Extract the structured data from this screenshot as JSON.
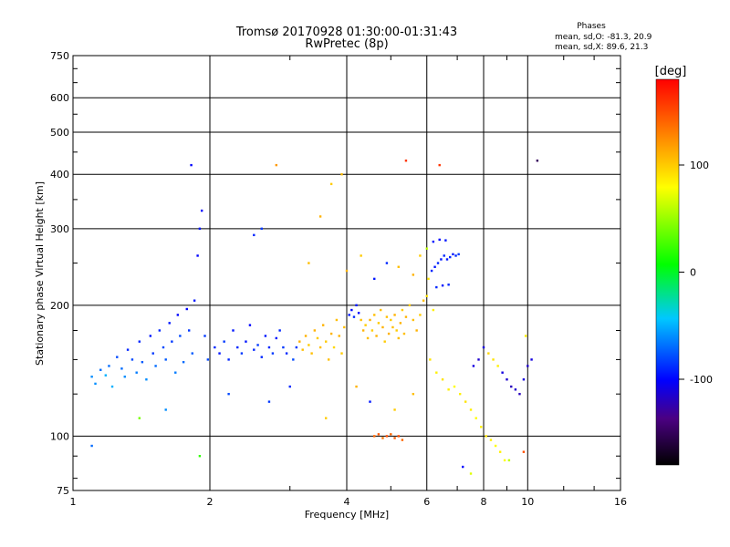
{
  "header": {
    "title_line1": "Tromsø 20170928 01:30:00-01:31:43",
    "title_line2": "RwPretec (8p)",
    "stats_title": "Phases",
    "stats_line1": "mean, sd,O: -81.3, 20.9",
    "stats_line2": "mean, sd,X:  89.6, 21.3"
  },
  "colorbar": {
    "label": "[deg]",
    "ticks": [
      {
        "label": "100",
        "value": 100
      },
      {
        "label": "0",
        "value": 0
      },
      {
        "label": "-100",
        "value": -100
      }
    ],
    "range": [
      -180,
      180
    ]
  },
  "chart_data": {
    "type": "scatter",
    "xlabel": "Frequency [MHz]",
    "ylabel": "Stationary phase Virtual Height [km]",
    "xscale": "log",
    "yscale": "log",
    "xlim": [
      1,
      16
    ],
    "ylim": [
      75,
      750
    ],
    "xticks": [
      {
        "label": "1",
        "value": 1
      },
      {
        "label": "2",
        "value": 2
      },
      {
        "label": "4",
        "value": 4
      },
      {
        "label": "6",
        "value": 6
      },
      {
        "label": "8",
        "value": 8
      },
      {
        "label": "10",
        "value": 10
      },
      {
        "label": "16",
        "value": 16
      }
    ],
    "yticks": [
      {
        "label": "75",
        "value": 75
      },
      {
        "label": "100",
        "value": 100
      },
      {
        "label": "200",
        "value": 200
      },
      {
        "label": "300",
        "value": 300
      },
      {
        "label": "400",
        "value": 400
      },
      {
        "label": "500",
        "value": 500
      },
      {
        "label": "600",
        "value": 600
      },
      {
        "label": "750",
        "value": 750
      }
    ],
    "grid": true,
    "color_scale": "rainbow phase [deg], -180 black to 180 red",
    "points": [
      {
        "x": 1.1,
        "y": 137,
        "phase": -60
      },
      {
        "x": 1.12,
        "y": 132,
        "phase": -60
      },
      {
        "x": 1.15,
        "y": 142,
        "phase": -70
      },
      {
        "x": 1.18,
        "y": 138,
        "phase": -50
      },
      {
        "x": 1.2,
        "y": 145,
        "phase": -70
      },
      {
        "x": 1.22,
        "y": 130,
        "phase": -50
      },
      {
        "x": 1.25,
        "y": 152,
        "phase": -80
      },
      {
        "x": 1.28,
        "y": 143,
        "phase": -70
      },
      {
        "x": 1.3,
        "y": 137,
        "phase": -60
      },
      {
        "x": 1.32,
        "y": 158,
        "phase": -90
      },
      {
        "x": 1.35,
        "y": 150,
        "phase": -80
      },
      {
        "x": 1.38,
        "y": 140,
        "phase": -65
      },
      {
        "x": 1.4,
        "y": 165,
        "phase": -90
      },
      {
        "x": 1.42,
        "y": 148,
        "phase": -75
      },
      {
        "x": 1.45,
        "y": 135,
        "phase": -60
      },
      {
        "x": 1.48,
        "y": 170,
        "phase": -95
      },
      {
        "x": 1.5,
        "y": 155,
        "phase": -85
      },
      {
        "x": 1.52,
        "y": 145,
        "phase": -70
      },
      {
        "x": 1.55,
        "y": 175,
        "phase": -90
      },
      {
        "x": 1.58,
        "y": 160,
        "phase": -80
      },
      {
        "x": 1.6,
        "y": 150,
        "phase": -75
      },
      {
        "x": 1.63,
        "y": 182,
        "phase": -95
      },
      {
        "x": 1.65,
        "y": 165,
        "phase": -85
      },
      {
        "x": 1.68,
        "y": 140,
        "phase": -65
      },
      {
        "x": 1.7,
        "y": 190,
        "phase": -100
      },
      {
        "x": 1.72,
        "y": 170,
        "phase": -80
      },
      {
        "x": 1.75,
        "y": 148,
        "phase": -70
      },
      {
        "x": 1.78,
        "y": 196,
        "phase": -100
      },
      {
        "x": 1.8,
        "y": 175,
        "phase": -85
      },
      {
        "x": 1.83,
        "y": 155,
        "phase": -75
      },
      {
        "x": 1.85,
        "y": 205,
        "phase": -95
      },
      {
        "x": 1.88,
        "y": 260,
        "phase": -100
      },
      {
        "x": 1.9,
        "y": 300,
        "phase": -95
      },
      {
        "x": 1.92,
        "y": 330,
        "phase": -100
      },
      {
        "x": 1.95,
        "y": 170,
        "phase": -85
      },
      {
        "x": 1.98,
        "y": 150,
        "phase": -80
      },
      {
        "x": 2.05,
        "y": 160,
        "phase": -90
      },
      {
        "x": 2.1,
        "y": 155,
        "phase": -95
      },
      {
        "x": 2.15,
        "y": 165,
        "phase": -85
      },
      {
        "x": 2.2,
        "y": 150,
        "phase": -90
      },
      {
        "x": 2.25,
        "y": 175,
        "phase": -95
      },
      {
        "x": 2.3,
        "y": 160,
        "phase": -90
      },
      {
        "x": 2.35,
        "y": 155,
        "phase": -85
      },
      {
        "x": 2.4,
        "y": 165,
        "phase": -95
      },
      {
        "x": 2.45,
        "y": 180,
        "phase": -100
      },
      {
        "x": 2.5,
        "y": 158,
        "phase": -90
      },
      {
        "x": 2.55,
        "y": 162,
        "phase": -85
      },
      {
        "x": 2.6,
        "y": 152,
        "phase": -90
      },
      {
        "x": 2.65,
        "y": 170,
        "phase": -95
      },
      {
        "x": 2.7,
        "y": 160,
        "phase": -90
      },
      {
        "x": 2.75,
        "y": 155,
        "phase": -85
      },
      {
        "x": 2.8,
        "y": 168,
        "phase": -95
      },
      {
        "x": 2.85,
        "y": 175,
        "phase": -90
      },
      {
        "x": 2.9,
        "y": 160,
        "phase": -85
      },
      {
        "x": 2.95,
        "y": 155,
        "phase": -90
      },
      {
        "x": 3.05,
        "y": 150,
        "phase": -80
      },
      {
        "x": 3.1,
        "y": 160,
        "phase": -85
      },
      {
        "x": 3.15,
        "y": 165,
        "phase": 110
      },
      {
        "x": 3.2,
        "y": 158,
        "phase": 105
      },
      {
        "x": 3.25,
        "y": 170,
        "phase": 110
      },
      {
        "x": 3.3,
        "y": 162,
        "phase": 100
      },
      {
        "x": 3.35,
        "y": 155,
        "phase": 105
      },
      {
        "x": 3.4,
        "y": 175,
        "phase": 110
      },
      {
        "x": 3.45,
        "y": 168,
        "phase": 100
      },
      {
        "x": 3.5,
        "y": 160,
        "phase": 105
      },
      {
        "x": 3.55,
        "y": 180,
        "phase": 110
      },
      {
        "x": 3.6,
        "y": 165,
        "phase": 100
      },
      {
        "x": 3.65,
        "y": 150,
        "phase": 105
      },
      {
        "x": 3.7,
        "y": 172,
        "phase": 110
      },
      {
        "x": 3.75,
        "y": 160,
        "phase": 95
      },
      {
        "x": 3.8,
        "y": 185,
        "phase": 105
      },
      {
        "x": 3.85,
        "y": 170,
        "phase": 110
      },
      {
        "x": 3.9,
        "y": 155,
        "phase": 100
      },
      {
        "x": 3.95,
        "y": 178,
        "phase": 105
      },
      {
        "x": 4.05,
        "y": 190,
        "phase": -95
      },
      {
        "x": 4.1,
        "y": 195,
        "phase": -100
      },
      {
        "x": 4.15,
        "y": 188,
        "phase": -90
      },
      {
        "x": 4.2,
        "y": 200,
        "phase": -95
      },
      {
        "x": 4.25,
        "y": 192,
        "phase": -100
      },
      {
        "x": 4.3,
        "y": 185,
        "phase": 105
      },
      {
        "x": 4.35,
        "y": 175,
        "phase": 110
      },
      {
        "x": 4.4,
        "y": 180,
        "phase": 100
      },
      {
        "x": 4.45,
        "y": 168,
        "phase": 105
      },
      {
        "x": 4.5,
        "y": 185,
        "phase": 110
      },
      {
        "x": 4.55,
        "y": 175,
        "phase": 100
      },
      {
        "x": 4.6,
        "y": 190,
        "phase": 105
      },
      {
        "x": 4.65,
        "y": 170,
        "phase": 110
      },
      {
        "x": 4.7,
        "y": 182,
        "phase": 100
      },
      {
        "x": 4.75,
        "y": 195,
        "phase": 105
      },
      {
        "x": 4.8,
        "y": 178,
        "phase": 110
      },
      {
        "x": 4.85,
        "y": 165,
        "phase": 100
      },
      {
        "x": 4.9,
        "y": 188,
        "phase": 105
      },
      {
        "x": 4.95,
        "y": 172,
        "phase": 110
      },
      {
        "x": 5.0,
        "y": 185,
        "phase": 100
      },
      {
        "x": 5.05,
        "y": 178,
        "phase": 105
      },
      {
        "x": 5.1,
        "y": 190,
        "phase": 110
      },
      {
        "x": 5.15,
        "y": 175,
        "phase": 100
      },
      {
        "x": 5.2,
        "y": 168,
        "phase": 105
      },
      {
        "x": 5.25,
        "y": 182,
        "phase": 110
      },
      {
        "x": 5.3,
        "y": 195,
        "phase": 100
      },
      {
        "x": 5.35,
        "y": 172,
        "phase": 105
      },
      {
        "x": 5.4,
        "y": 188,
        "phase": 110
      },
      {
        "x": 5.5,
        "y": 200,
        "phase": 100
      },
      {
        "x": 5.6,
        "y": 185,
        "phase": 105
      },
      {
        "x": 5.7,
        "y": 175,
        "phase": 110
      },
      {
        "x": 5.8,
        "y": 190,
        "phase": 100
      },
      {
        "x": 5.9,
        "y": 205,
        "phase": 105
      },
      {
        "x": 4.6,
        "y": 100,
        "phase": 140
      },
      {
        "x": 4.7,
        "y": 101,
        "phase": 145
      },
      {
        "x": 4.8,
        "y": 99,
        "phase": 135
      },
      {
        "x": 4.9,
        "y": 100,
        "phase": 150
      },
      {
        "x": 5.0,
        "y": 101,
        "phase": 140
      },
      {
        "x": 5.1,
        "y": 99,
        "phase": 145
      },
      {
        "x": 5.2,
        "y": 100,
        "phase": 150
      },
      {
        "x": 5.3,
        "y": 98,
        "phase": 140
      },
      {
        "x": 6.05,
        "y": 230,
        "phase": 90
      },
      {
        "x": 6.15,
        "y": 240,
        "phase": -90
      },
      {
        "x": 6.25,
        "y": 245,
        "phase": -95
      },
      {
        "x": 6.35,
        "y": 250,
        "phase": -90
      },
      {
        "x": 6.45,
        "y": 255,
        "phase": -95
      },
      {
        "x": 6.55,
        "y": 260,
        "phase": -90
      },
      {
        "x": 6.65,
        "y": 255,
        "phase": -95
      },
      {
        "x": 6.75,
        "y": 258,
        "phase": -90
      },
      {
        "x": 6.85,
        "y": 262,
        "phase": -95
      },
      {
        "x": 6.95,
        "y": 260,
        "phase": -90
      },
      {
        "x": 7.05,
        "y": 262,
        "phase": -85
      },
      {
        "x": 6.2,
        "y": 280,
        "phase": -95
      },
      {
        "x": 6.4,
        "y": 283,
        "phase": -100
      },
      {
        "x": 6.6,
        "y": 282,
        "phase": -95
      },
      {
        "x": 6.3,
        "y": 220,
        "phase": -90
      },
      {
        "x": 6.5,
        "y": 222,
        "phase": -95
      },
      {
        "x": 6.7,
        "y": 223,
        "phase": -90
      },
      {
        "x": 6.1,
        "y": 150,
        "phase": 90
      },
      {
        "x": 6.3,
        "y": 140,
        "phase": 85
      },
      {
        "x": 6.5,
        "y": 135,
        "phase": 90
      },
      {
        "x": 6.7,
        "y": 128,
        "phase": 85
      },
      {
        "x": 6.9,
        "y": 130,
        "phase": 80
      },
      {
        "x": 7.1,
        "y": 125,
        "phase": 85
      },
      {
        "x": 7.3,
        "y": 120,
        "phase": 90
      },
      {
        "x": 7.5,
        "y": 115,
        "phase": 85
      },
      {
        "x": 7.7,
        "y": 110,
        "phase": 80
      },
      {
        "x": 7.9,
        "y": 105,
        "phase": 85
      },
      {
        "x": 8.1,
        "y": 100,
        "phase": 90
      },
      {
        "x": 8.3,
        "y": 98,
        "phase": 85
      },
      {
        "x": 8.5,
        "y": 95,
        "phase": 80
      },
      {
        "x": 8.7,
        "y": 92,
        "phase": 85
      },
      {
        "x": 8.9,
        "y": 88,
        "phase": 80
      },
      {
        "x": 7.6,
        "y": 145,
        "phase": -110
      },
      {
        "x": 7.8,
        "y": 150,
        "phase": -115
      },
      {
        "x": 8.0,
        "y": 160,
        "phase": -110
      },
      {
        "x": 8.2,
        "y": 155,
        "phase": 95
      },
      {
        "x": 8.4,
        "y": 150,
        "phase": 90
      },
      {
        "x": 8.6,
        "y": 145,
        "phase": 85
      },
      {
        "x": 8.8,
        "y": 140,
        "phase": -110
      },
      {
        "x": 9.0,
        "y": 135,
        "phase": -115
      },
      {
        "x": 9.2,
        "y": 130,
        "phase": -120
      },
      {
        "x": 9.4,
        "y": 128,
        "phase": -115
      },
      {
        "x": 9.6,
        "y": 125,
        "phase": -120
      },
      {
        "x": 9.8,
        "y": 135,
        "phase": -110
      },
      {
        "x": 10.0,
        "y": 145,
        "phase": -115
      },
      {
        "x": 10.2,
        "y": 150,
        "phase": -110
      },
      {
        "x": 9.9,
        "y": 170,
        "phase": 85
      },
      {
        "x": 2.5,
        "y": 290,
        "phase": -90
      },
      {
        "x": 2.6,
        "y": 300,
        "phase": -85
      },
      {
        "x": 2.8,
        "y": 420,
        "phase": 120
      },
      {
        "x": 3.3,
        "y": 250,
        "phase": 105
      },
      {
        "x": 3.5,
        "y": 320,
        "phase": 110
      },
      {
        "x": 3.7,
        "y": 380,
        "phase": 100
      },
      {
        "x": 3.9,
        "y": 400,
        "phase": 105
      },
      {
        "x": 5.4,
        "y": 430,
        "phase": 160
      },
      {
        "x": 6.4,
        "y": 420,
        "phase": 160
      },
      {
        "x": 10.5,
        "y": 430,
        "phase": -150
      },
      {
        "x": 1.82,
        "y": 420,
        "phase": -100
      },
      {
        "x": 1.1,
        "y": 95,
        "phase": -70
      },
      {
        "x": 1.4,
        "y": 110,
        "phase": 40
      },
      {
        "x": 1.6,
        "y": 115,
        "phase": -60
      },
      {
        "x": 1.9,
        "y": 90,
        "phase": 20
      },
      {
        "x": 2.2,
        "y": 125,
        "phase": -80
      },
      {
        "x": 2.7,
        "y": 120,
        "phase": -85
      },
      {
        "x": 3.0,
        "y": 130,
        "phase": -90
      },
      {
        "x": 3.6,
        "y": 110,
        "phase": 100
      },
      {
        "x": 4.2,
        "y": 130,
        "phase": 110
      },
      {
        "x": 4.5,
        "y": 120,
        "phase": -95
      },
      {
        "x": 5.1,
        "y": 115,
        "phase": 100
      },
      {
        "x": 5.6,
        "y": 125,
        "phase": 105
      },
      {
        "x": 7.2,
        "y": 85,
        "phase": -100
      },
      {
        "x": 7.5,
        "y": 82,
        "phase": 70
      },
      {
        "x": 9.1,
        "y": 88,
        "phase": 60
      },
      {
        "x": 9.8,
        "y": 92,
        "phase": 150
      },
      {
        "x": 4.0,
        "y": 240,
        "phase": 110
      },
      {
        "x": 4.3,
        "y": 260,
        "phase": 100
      },
      {
        "x": 4.6,
        "y": 230,
        "phase": -95
      },
      {
        "x": 4.9,
        "y": 250,
        "phase": -90
      },
      {
        "x": 5.2,
        "y": 245,
        "phase": 105
      },
      {
        "x": 5.6,
        "y": 235,
        "phase": 110
      },
      {
        "x": 5.8,
        "y": 260,
        "phase": 100
      },
      {
        "x": 6.0,
        "y": 270,
        "phase": 60
      },
      {
        "x": 6.2,
        "y": 195,
        "phase": 85
      },
      {
        "x": 6.0,
        "y": 210,
        "phase": 90
      }
    ]
  }
}
